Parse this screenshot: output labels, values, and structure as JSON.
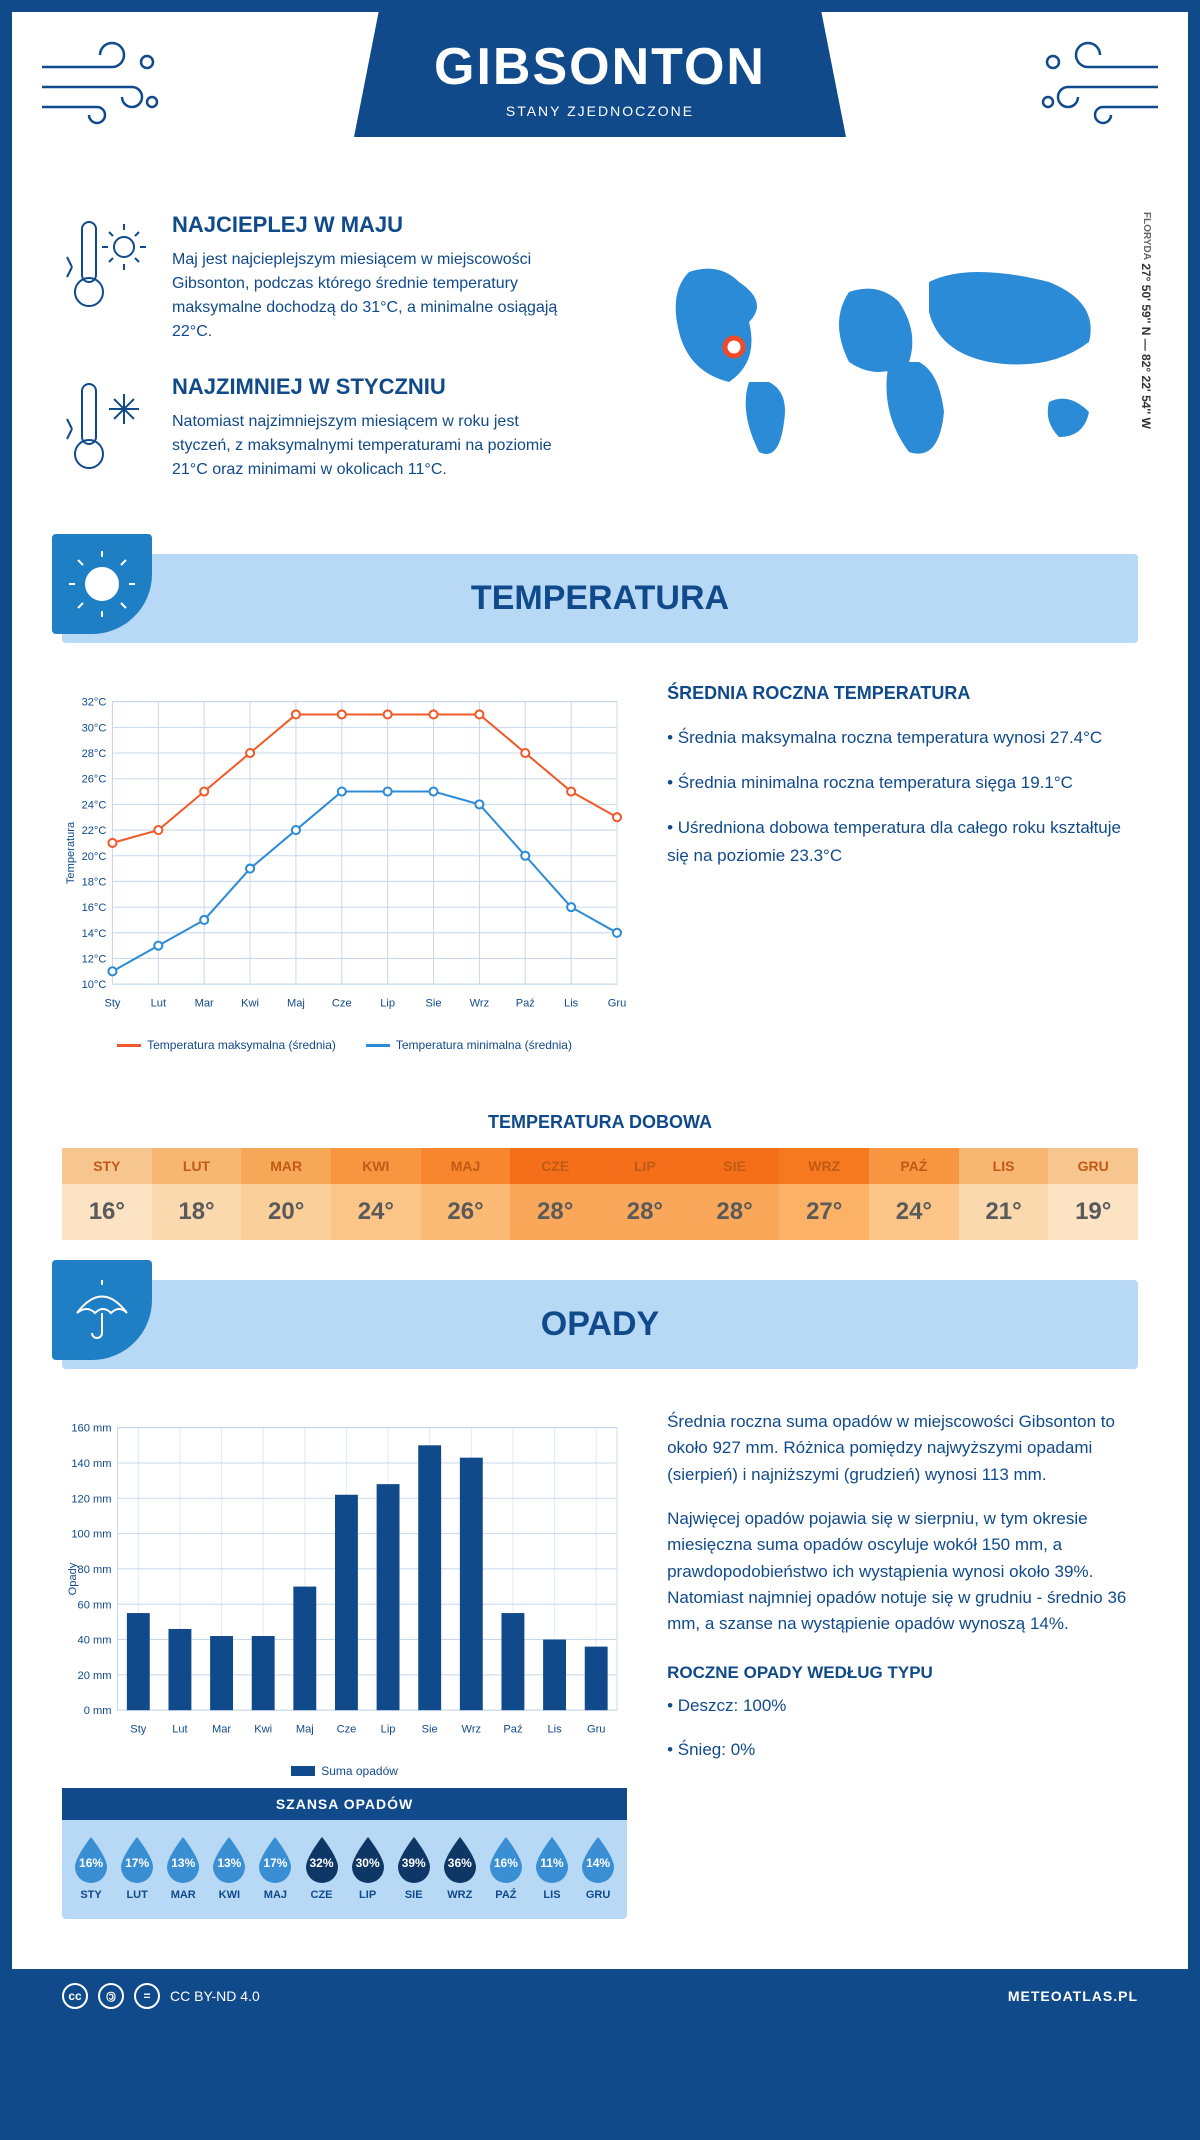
{
  "header": {
    "title": "GIBSONTON",
    "subtitle": "STANY ZJEDNOCZONE"
  },
  "coords": {
    "text": "27° 50' 59'' N — 82° 22' 54'' W",
    "region": "FLORYDA"
  },
  "facts": {
    "hot": {
      "title": "NAJCIEPLEJ W MAJU",
      "text": "Maj jest najcieplejszym miesiącem w miejscowości Gibsonton, podczas którego średnie temperatury maksymalne dochodzą do 31°C, a minimalne osiągają 22°C."
    },
    "cold": {
      "title": "NAJZIMNIEJ W STYCZNIU",
      "text": "Natomiast najzimniejszym miesiącem w roku jest styczeń, z maksymalnymi temperaturami na poziomie 21°C oraz minimami w okolicach 11°C."
    }
  },
  "sections": {
    "temperature": "TEMPERATURA",
    "precip": "OPADY"
  },
  "temp_chart": {
    "type": "line",
    "months": [
      "Sty",
      "Lut",
      "Mar",
      "Kwi",
      "Maj",
      "Cze",
      "Lip",
      "Sie",
      "Wrz",
      "Paź",
      "Lis",
      "Gru"
    ],
    "max": [
      21,
      22,
      25,
      28,
      31,
      31,
      31,
      31,
      31,
      28,
      25,
      23
    ],
    "min": [
      11,
      13,
      15,
      19,
      22,
      25,
      25,
      25,
      24,
      20,
      16,
      14
    ],
    "ylabel": "Temperatura",
    "ylim": [
      10,
      32
    ],
    "ytick_step": 2,
    "max_color": "#f05a28",
    "min_color": "#2b8bd6",
    "grid_color": "#c8d8ea",
    "background": "#ffffff",
    "legend_max": "Temperatura maksymalna (średnia)",
    "legend_min": "Temperatura minimalna (średnia)",
    "line_width": 2,
    "marker_size": 4
  },
  "temp_info": {
    "heading": "ŚREDNIA ROCZNA TEMPERATURA",
    "items": [
      "• Średnia maksymalna roczna temperatura wynosi 27.4°C",
      "• Średnia minimalna roczna temperatura sięga 19.1°C",
      "• Uśredniona dobowa temperatura dla całego roku kształtuje się na poziomie 23.3°C"
    ]
  },
  "daily": {
    "title": "TEMPERATURA DOBOWA",
    "months": [
      "STY",
      "LUT",
      "MAR",
      "KWI",
      "MAJ",
      "CZE",
      "LIP",
      "SIE",
      "WRZ",
      "PAŹ",
      "LIS",
      "GRU"
    ],
    "temps": [
      "16°",
      "18°",
      "20°",
      "24°",
      "26°",
      "28°",
      "28°",
      "28°",
      "27°",
      "24°",
      "21°",
      "19°"
    ],
    "head_colors": [
      "#f7c58e",
      "#f7b672",
      "#f7a758",
      "#f79540",
      "#f7862e",
      "#f56e1a",
      "#f56e1a",
      "#f56e1a",
      "#f7791f",
      "#f79540",
      "#f7b672",
      "#f7c58e"
    ],
    "body_colors": [
      "#fbe3c4",
      "#fbd9af",
      "#fbcf9a",
      "#fbc587",
      "#fbbb74",
      "#faa75a",
      "#faa75a",
      "#faa75a",
      "#fbb166",
      "#fbc587",
      "#fbd9af",
      "#fbe3c4"
    ],
    "head_text": "#c15a14"
  },
  "precip_chart": {
    "type": "bar",
    "months": [
      "Sty",
      "Lut",
      "Mar",
      "Kwi",
      "Maj",
      "Cze",
      "Lip",
      "Sie",
      "Wrz",
      "Paź",
      "Lis",
      "Gru"
    ],
    "values": [
      55,
      46,
      42,
      42,
      70,
      122,
      128,
      150,
      143,
      55,
      40,
      36
    ],
    "ylabel": "Opady",
    "ylim": [
      0,
      160
    ],
    "ytick_step": 20,
    "bar_color": "#104a8a",
    "grid_color": "#c8d8ea",
    "legend": "Suma opadów",
    "bar_width": 0.55
  },
  "precip_info": {
    "p1": "Średnia roczna suma opadów w miejscowości Gibsonton to około 927 mm. Różnica pomiędzy najwyższymi opadami (sierpień) i najniższymi (grudzień) wynosi 113 mm.",
    "p2": "Najwięcej opadów pojawia się w sierpniu, w tym okresie miesięczna suma opadów oscyluje wokół 150 mm, a prawdopodobieństwo ich wystąpienia wynosi około 39%. Natomiast najmniej opadów notuje się w grudniu - średnio 36 mm, a szanse na wystąpienie opadów wynoszą 14%.",
    "type_heading": "ROCZNE OPADY WEDŁUG TYPU",
    "types": [
      "• Deszcz: 100%",
      "• Śnieg: 0%"
    ]
  },
  "chance": {
    "title": "SZANSA OPADÓW",
    "months": [
      "STY",
      "LUT",
      "MAR",
      "KWI",
      "MAJ",
      "CZE",
      "LIP",
      "SIE",
      "WRZ",
      "PAŹ",
      "LIS",
      "GRU"
    ],
    "values": [
      "16%",
      "17%",
      "13%",
      "13%",
      "17%",
      "32%",
      "30%",
      "39%",
      "36%",
      "16%",
      "11%",
      "14%"
    ],
    "colors": [
      "#3a8fd4",
      "#3a8fd4",
      "#3a8fd4",
      "#3a8fd4",
      "#3a8fd4",
      "#0e3766",
      "#0e3766",
      "#0e3766",
      "#0e3766",
      "#3a8fd4",
      "#3a8fd4",
      "#3a8fd4"
    ]
  },
  "footer": {
    "license": "CC BY-ND 4.0",
    "site": "METEOATLAS.PL"
  },
  "map": {
    "location_marker_color": "#f04a2a",
    "continent_color": "#2b8bd6"
  }
}
